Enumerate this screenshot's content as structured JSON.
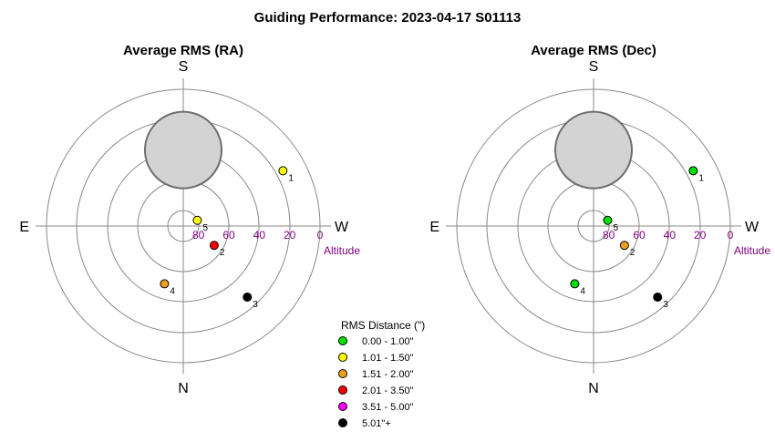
{
  "title": "Guiding Performance: 2023-04-17  S01113",
  "panels": [
    {
      "id": "ra",
      "title": "Average RMS (RA)",
      "compass": {
        "top": "S",
        "bottom": "N",
        "left": "E",
        "right": "W"
      },
      "altitude_label": "Altitude",
      "altitude_ticks": [
        "80",
        "60",
        "40",
        "20",
        "0"
      ],
      "points": [
        {
          "label": "1",
          "class": "1.01 - 1.50\"",
          "color": "#ffff00"
        },
        {
          "label": "2",
          "class": "2.01 - 3.50\"",
          "color": "#ff0000"
        },
        {
          "label": "3",
          "class": "5.01\"+",
          "color": "#000000"
        },
        {
          "label": "4",
          "class": "1.51 - 2.00\"",
          "color": "#f0a020"
        },
        {
          "label": "5",
          "class": "1.01 - 1.50\"",
          "color": "#ffff00"
        }
      ]
    },
    {
      "id": "dec",
      "title": "Average RMS (Dec)",
      "compass": {
        "top": "S",
        "bottom": "N",
        "left": "E",
        "right": "W"
      },
      "altitude_label": "Altitude",
      "altitude_ticks": [
        "80",
        "60",
        "40",
        "20",
        "0"
      ],
      "points": [
        {
          "label": "1",
          "class": "0.00 - 1.00\"",
          "color": "#00e000"
        },
        {
          "label": "2",
          "class": "1.51 - 2.00\"",
          "color": "#f0a020"
        },
        {
          "label": "3",
          "class": "5.01\"+",
          "color": "#000000"
        },
        {
          "label": "4",
          "class": "0.00 - 1.00\"",
          "color": "#00e000"
        },
        {
          "label": "5",
          "class": "0.00 - 1.00\"",
          "color": "#00e000"
        }
      ]
    }
  ],
  "legend": {
    "title": "RMS Distance (\")",
    "items": [
      {
        "label": "0.00 - 1.00\"",
        "color": "#00e000"
      },
      {
        "label": "1.01 - 1.50\"",
        "color": "#ffff00"
      },
      {
        "label": "1.51 - 2.00\"",
        "color": "#f0a020"
      },
      {
        "label": "2.01 - 3.50\"",
        "color": "#ff0000"
      },
      {
        "label": "3.51 - 5.00\"",
        "color": "#ff00ff"
      },
      {
        "label": "5.01\"+",
        "color": "#000000"
      }
    ]
  },
  "chart_data": [
    {
      "type": "scatter",
      "projection": "polar-sky",
      "title": "Average RMS (RA)",
      "altitude_ticks": [
        80,
        60,
        40,
        20,
        0
      ],
      "radial_label": "Altitude",
      "moon": {
        "azimuth": 0,
        "altitude": 40,
        "color": "#d3d3d3"
      },
      "points": [
        {
          "label": "1",
          "azimuth": 299,
          "altitude": 15,
          "rms_class": "1.01 - 1.50\""
        },
        {
          "label": "2",
          "azimuth": 238,
          "altitude": 66,
          "rms_class": "2.01 - 3.50\""
        },
        {
          "label": "3",
          "azimuth": 222,
          "altitude": 27,
          "rms_class": "5.01\"+"
        },
        {
          "label": "4",
          "azimuth": 162,
          "altitude": 50,
          "rms_class": "1.51 - 2.00\""
        },
        {
          "label": "5",
          "azimuth": 292,
          "altitude": 80,
          "rms_class": "1.01 - 1.50\""
        }
      ]
    },
    {
      "type": "scatter",
      "projection": "polar-sky",
      "title": "Average RMS (Dec)",
      "altitude_ticks": [
        80,
        60,
        40,
        20,
        0
      ],
      "radial_label": "Altitude",
      "moon": {
        "azimuth": 0,
        "altitude": 40,
        "color": "#d3d3d3"
      },
      "points": [
        {
          "label": "1",
          "azimuth": 299,
          "altitude": 15,
          "rms_class": "0.00 - 1.00\""
        },
        {
          "label": "2",
          "azimuth": 238,
          "altitude": 66,
          "rms_class": "1.51 - 2.00\""
        },
        {
          "label": "3",
          "azimuth": 222,
          "altitude": 27,
          "rms_class": "5.01\"+"
        },
        {
          "label": "4",
          "azimuth": 162,
          "altitude": 50,
          "rms_class": "0.00 - 1.00\""
        },
        {
          "label": "5",
          "azimuth": 292,
          "altitude": 80,
          "rms_class": "0.00 - 1.00\""
        }
      ]
    }
  ]
}
